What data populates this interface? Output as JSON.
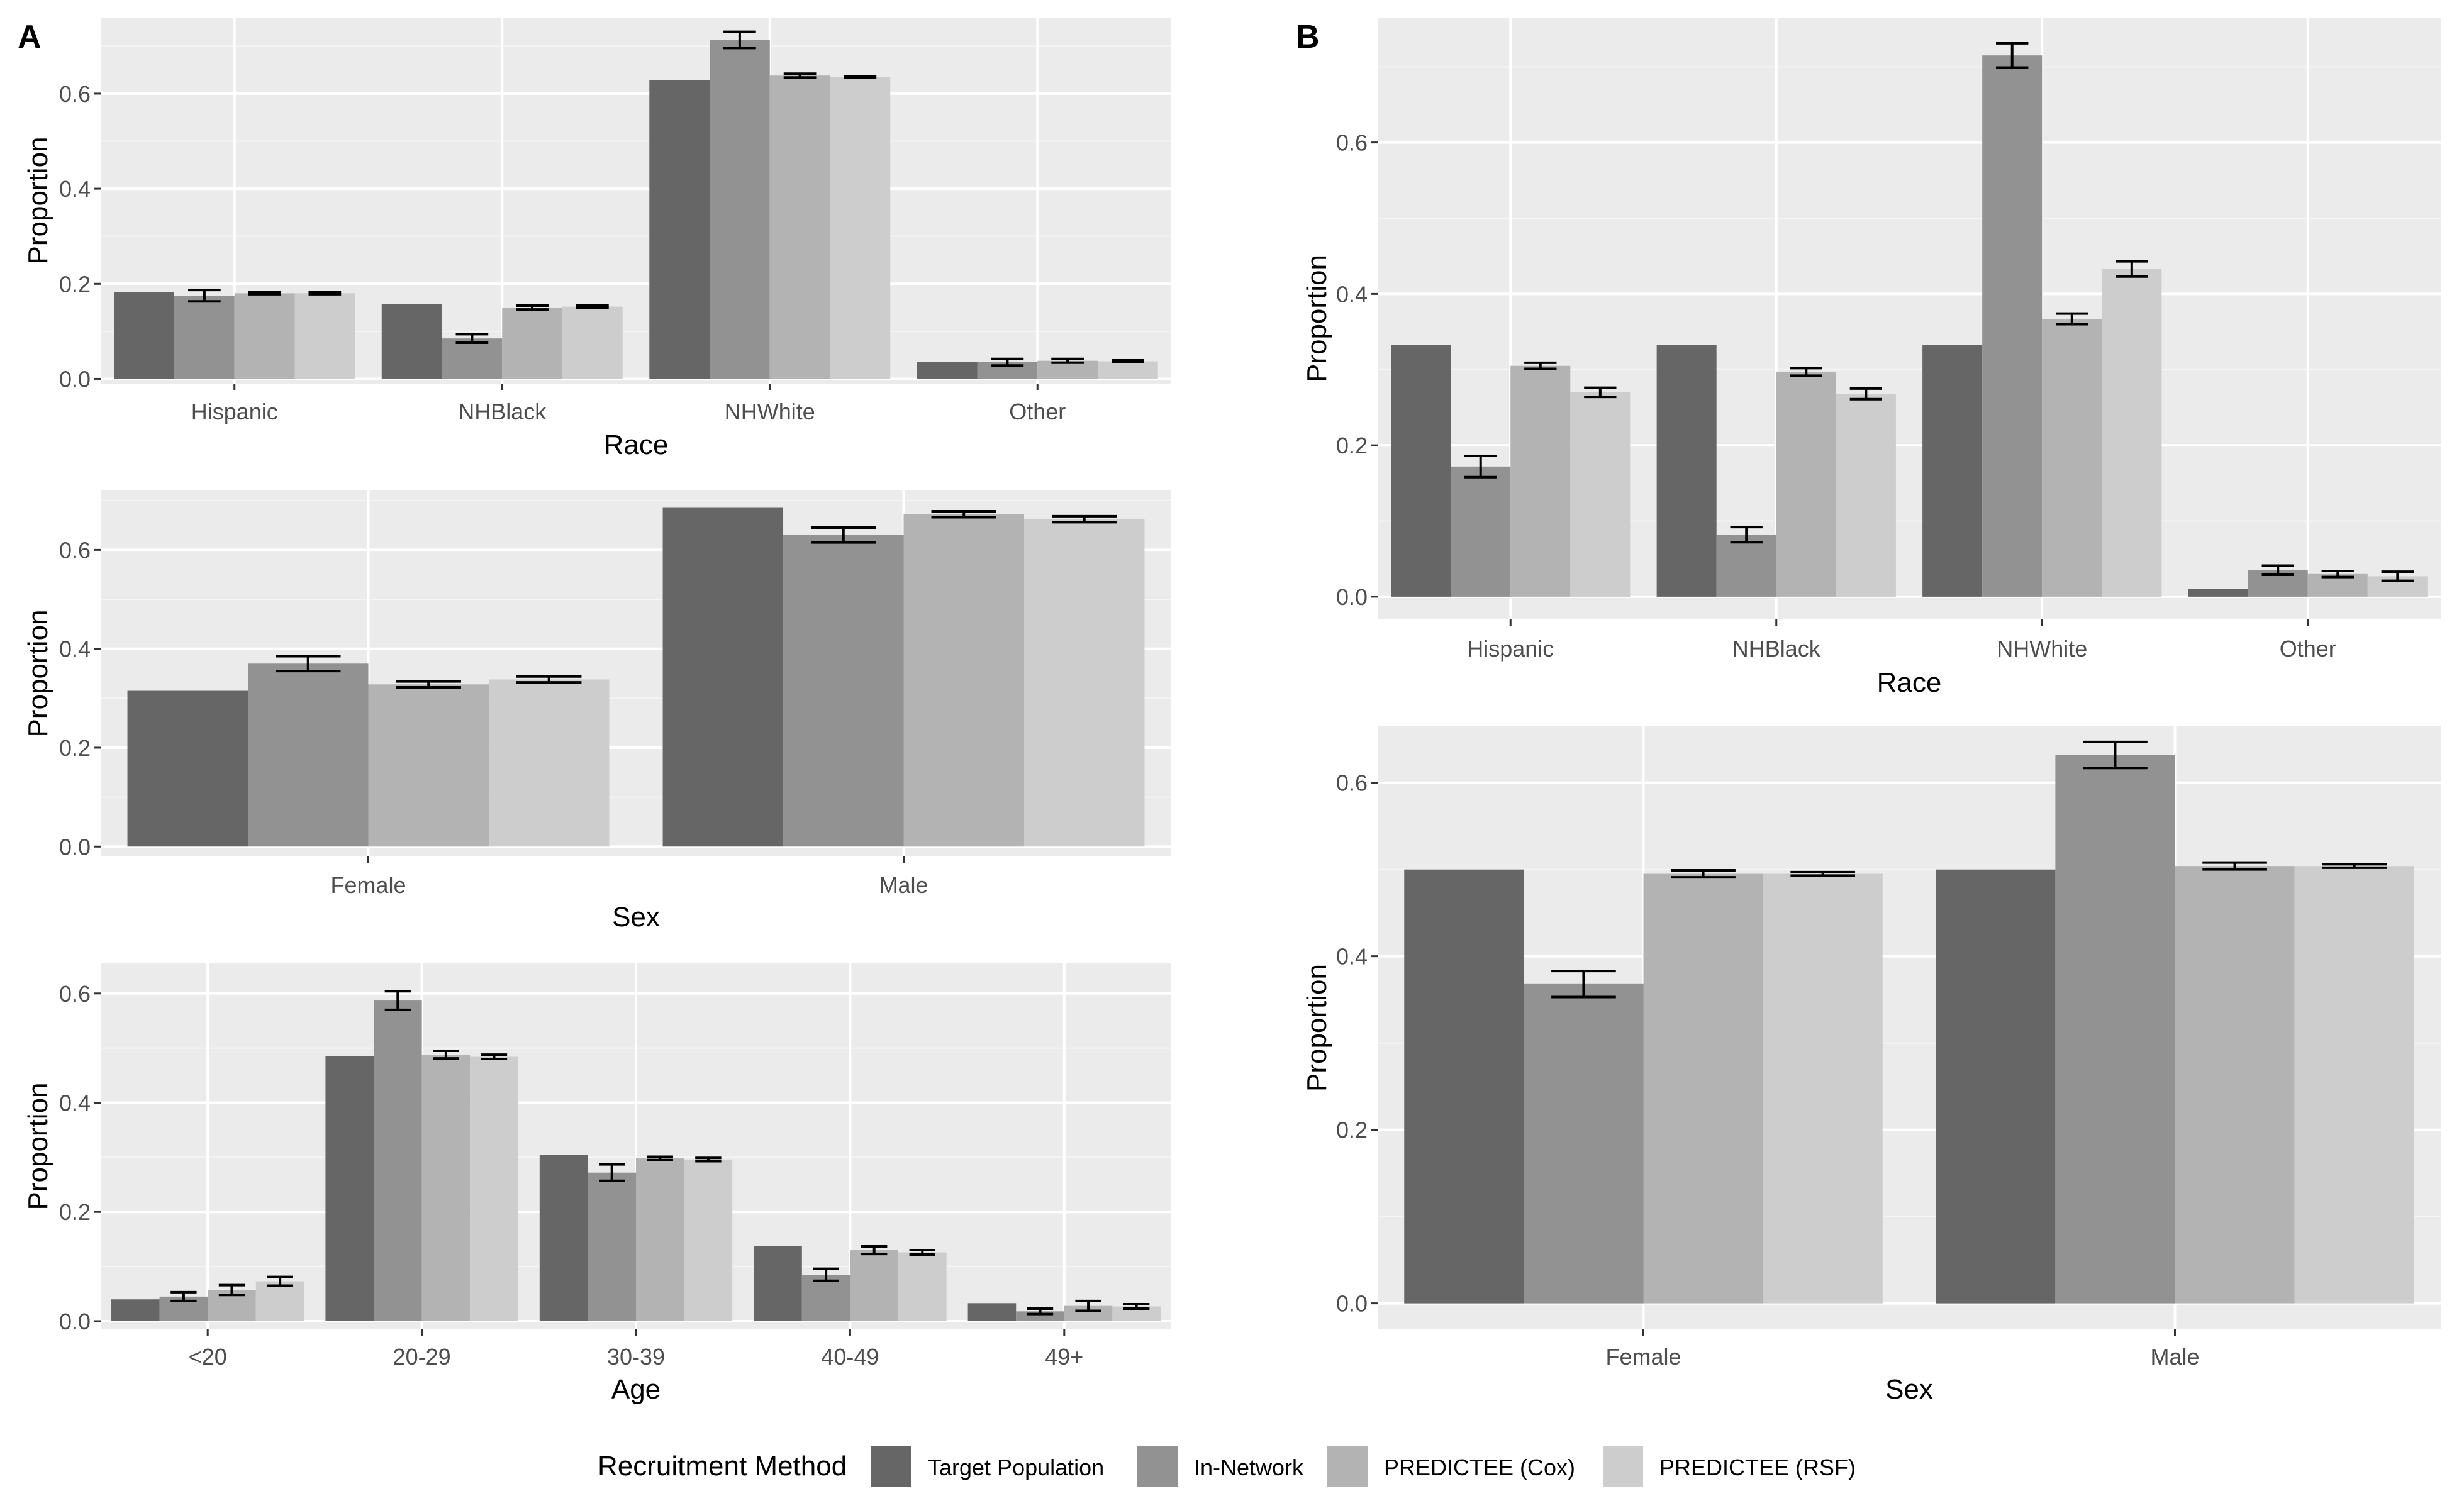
{
  "figure": {
    "panel_tags": [
      "A",
      "B"
    ],
    "legend": {
      "title": "Recruitment Method",
      "entries": [
        "Target Population",
        "In-Network",
        "PREDICTEE (Cox)",
        "PREDICTEE (RSF)"
      ],
      "placement": "bottom"
    },
    "series_colors": [
      "#666666",
      "#929292",
      "#b3b3b3",
      "#cdcdcd"
    ],
    "colors": {
      "panel_background": "#ebebeb",
      "grid": "#ffffff",
      "error_bar": "#000000"
    }
  },
  "chart_data": [
    {
      "panel": "A",
      "type": "bar",
      "xlabel": "Race",
      "ylabel": "Proportion",
      "categories": [
        "Hispanic",
        "NHBlack",
        "NHWhite",
        "Other"
      ],
      "ylim": [
        -0.01,
        0.76
      ],
      "yticks": [
        0.0,
        0.2,
        0.4,
        0.6
      ],
      "grid": true,
      "series": [
        {
          "name": "Target Population",
          "values": [
            0.183,
            0.158,
            0.628,
            0.035
          ],
          "errors": [
            null,
            null,
            null,
            null
          ]
        },
        {
          "name": "In-Network",
          "values": [
            0.175,
            0.085,
            0.713,
            0.035
          ],
          "errors": [
            0.012,
            0.009,
            0.017,
            0.007
          ]
        },
        {
          "name": "PREDICTEE (Cox)",
          "values": [
            0.18,
            0.15,
            0.638,
            0.038
          ],
          "errors": [
            0.002,
            0.004,
            0.004,
            0.004
          ]
        },
        {
          "name": "PREDICTEE (RSF)",
          "values": [
            0.18,
            0.152,
            0.635,
            0.037
          ],
          "errors": [
            0.002,
            0.002,
            0.002,
            0.002
          ]
        }
      ]
    },
    {
      "panel": "A",
      "type": "bar",
      "xlabel": "Sex",
      "ylabel": "Proportion",
      "categories": [
        "Female",
        "Male"
      ],
      "ylim": [
        -0.02,
        0.72
      ],
      "yticks": [
        0.0,
        0.2,
        0.4,
        0.6
      ],
      "grid": true,
      "series": [
        {
          "name": "Target Population",
          "values": [
            0.315,
            0.685
          ],
          "errors": [
            null,
            null
          ]
        },
        {
          "name": "In-Network",
          "values": [
            0.37,
            0.63
          ],
          "errors": [
            0.015,
            0.015
          ]
        },
        {
          "name": "PREDICTEE (Cox)",
          "values": [
            0.328,
            0.672
          ],
          "errors": [
            0.006,
            0.006
          ]
        },
        {
          "name": "PREDICTEE (RSF)",
          "values": [
            0.338,
            0.662
          ],
          "errors": [
            0.006,
            0.006
          ]
        }
      ]
    },
    {
      "panel": "A",
      "type": "bar",
      "xlabel": "Age",
      "ylabel": "Proportion",
      "categories": [
        "<20",
        "20-29",
        "30-39",
        "40-49",
        "49+"
      ],
      "ylim": [
        -0.015,
        0.655
      ],
      "yticks": [
        0.0,
        0.2,
        0.4,
        0.6
      ],
      "grid": true,
      "series": [
        {
          "name": "Target Population",
          "values": [
            0.04,
            0.485,
            0.305,
            0.137,
            0.033
          ],
          "errors": [
            null,
            null,
            null,
            null,
            null
          ]
        },
        {
          "name": "In-Network",
          "values": [
            0.045,
            0.587,
            0.272,
            0.085,
            0.018
          ],
          "errors": [
            0.008,
            0.017,
            0.015,
            0.011,
            0.005
          ]
        },
        {
          "name": "PREDICTEE (Cox)",
          "values": [
            0.057,
            0.488,
            0.298,
            0.13,
            0.028
          ],
          "errors": [
            0.009,
            0.007,
            0.003,
            0.007,
            0.009
          ]
        },
        {
          "name": "PREDICTEE (RSF)",
          "values": [
            0.073,
            0.484,
            0.296,
            0.126,
            0.027
          ],
          "errors": [
            0.008,
            0.004,
            0.003,
            0.004,
            0.004
          ]
        }
      ]
    },
    {
      "panel": "B",
      "type": "bar",
      "xlabel": "Race",
      "ylabel": "Proportion",
      "categories": [
        "Hispanic",
        "NHBlack",
        "NHWhite",
        "Other"
      ],
      "ylim": [
        -0.03,
        0.765
      ],
      "yticks": [
        0.0,
        0.2,
        0.4,
        0.6
      ],
      "grid": true,
      "series": [
        {
          "name": "Target Population",
          "values": [
            0.333,
            0.333,
            0.333,
            0.01
          ],
          "errors": [
            null,
            null,
            null,
            null
          ]
        },
        {
          "name": "In-Network",
          "values": [
            0.172,
            0.082,
            0.715,
            0.035
          ],
          "errors": [
            0.014,
            0.01,
            0.016,
            0.006
          ]
        },
        {
          "name": "PREDICTEE (Cox)",
          "values": [
            0.305,
            0.297,
            0.367,
            0.03
          ],
          "errors": [
            0.004,
            0.005,
            0.007,
            0.004
          ]
        },
        {
          "name": "PREDICTEE (RSF)",
          "values": [
            0.27,
            0.268,
            0.433,
            0.027
          ],
          "errors": [
            0.006,
            0.007,
            0.01,
            0.006
          ]
        }
      ]
    },
    {
      "panel": "B",
      "type": "bar",
      "xlabel": "Sex",
      "ylabel": "Proportion",
      "categories": [
        "Female",
        "Male"
      ],
      "ylim": [
        -0.03,
        0.665
      ],
      "yticks": [
        0.0,
        0.2,
        0.4,
        0.6
      ],
      "grid": true,
      "series": [
        {
          "name": "Target Population",
          "values": [
            0.5,
            0.5
          ],
          "errors": [
            null,
            null
          ]
        },
        {
          "name": "In-Network",
          "values": [
            0.368,
            0.632
          ],
          "errors": [
            0.015,
            0.015
          ]
        },
        {
          "name": "PREDICTEE (Cox)",
          "values": [
            0.495,
            0.504
          ],
          "errors": [
            0.004,
            0.004
          ]
        },
        {
          "name": "PREDICTEE (RSF)",
          "values": [
            0.495,
            0.504
          ],
          "errors": [
            0.002,
            0.002
          ]
        }
      ]
    }
  ]
}
